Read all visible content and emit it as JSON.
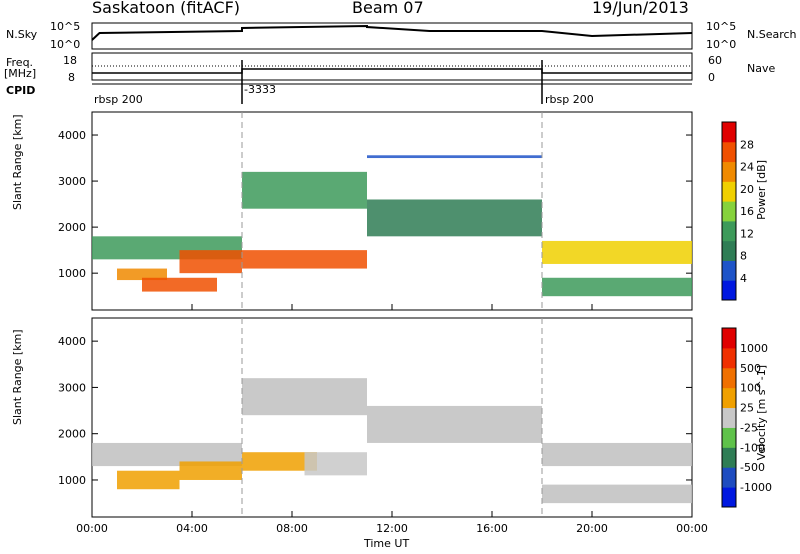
{
  "header": {
    "station": "Saskatoon (fitACF)",
    "beam": "Beam 07",
    "date": "19/Jun/2013"
  },
  "status_panel": {
    "nsky_label": "N.Sky",
    "nsky_ticks": [
      "10^5",
      "10^0"
    ],
    "nsearch_label": "N.Search",
    "nsearch_ticks": [
      "10^5",
      "10^0"
    ],
    "freq_label": "Freq.",
    "freq_unit": "[MHz]",
    "freq_ticks": [
      "18",
      "8"
    ],
    "nave_label": "Nave",
    "nave_ticks": [
      "60",
      "0"
    ],
    "cpid_label": "CPID",
    "cpid_segments": [
      {
        "start": 0,
        "end": 6,
        "label": "rbsp 200"
      },
      {
        "start": 6,
        "end": 18,
        "label": "-3333"
      },
      {
        "start": 18,
        "end": 24,
        "label": "rbsp 200"
      }
    ]
  },
  "colors": {
    "power_scale": [
      "#0018e0",
      "#1e54c8",
      "#2f7d55",
      "#3d9a5a",
      "#86d23c",
      "#f0d000",
      "#f08a00",
      "#f05000",
      "#e00000"
    ],
    "velocity_scale": [
      "#0018e0",
      "#1e4cc0",
      "#2f7d55",
      "#5fc24a",
      "#c8c8c8",
      "#f0a000",
      "#f07000",
      "#f03000",
      "#e00000"
    ],
    "ground_scatter": "#c0c0c0"
  },
  "chart_data": [
    {
      "type": "heatmap",
      "title": "Power",
      "ylabel": "Slant Range [km]",
      "xlabel": "Time UT",
      "xlim": [
        0,
        24
      ],
      "ylim": [
        200,
        4500
      ],
      "x_ticks": [
        "00:00",
        "04:00",
        "08:00",
        "12:00",
        "16:00",
        "20:00",
        "00:00"
      ],
      "y_ticks": [
        1000,
        2000,
        3000,
        4000
      ],
      "colorbar": {
        "label": "Power [dB]",
        "ticks": [
          "4",
          "8",
          "12",
          "16",
          "20",
          "24",
          "28"
        ],
        "range": [
          0,
          30
        ]
      },
      "regions": [
        {
          "t0": 0.0,
          "t1": 6.0,
          "r0": 1300,
          "r1": 1800,
          "value": 12
        },
        {
          "t0": 1.0,
          "t1": 3.0,
          "r0": 850,
          "r1": 1100,
          "value": 22
        },
        {
          "t0": 2.0,
          "t1": 5.0,
          "r0": 600,
          "r1": 900,
          "value": 26
        },
        {
          "t0": 3.5,
          "t1": 6.0,
          "r0": 1000,
          "r1": 1500,
          "value": 26
        },
        {
          "t0": 6.0,
          "t1": 11.0,
          "r0": 1100,
          "r1": 1500,
          "value": 26
        },
        {
          "t0": 6.0,
          "t1": 11.0,
          "r0": 2400,
          "r1": 3200,
          "value": 10
        },
        {
          "t0": 11.0,
          "t1": 18.0,
          "r0": 1800,
          "r1": 2600,
          "value": 8
        },
        {
          "t0": 11.0,
          "t1": 18.0,
          "r0": 3500,
          "r1": 3560,
          "value": 6
        },
        {
          "t0": 18.0,
          "t1": 24.0,
          "r0": 1200,
          "r1": 1700,
          "value": 18
        },
        {
          "t0": 18.0,
          "t1": 24.0,
          "r0": 500,
          "r1": 900,
          "value": 10
        }
      ]
    },
    {
      "type": "heatmap",
      "title": "Velocity",
      "ylabel": "Slant Range [km]",
      "xlabel": "Time UT",
      "xlim": [
        0,
        24
      ],
      "ylim": [
        200,
        4500
      ],
      "x_ticks": [
        "00:00",
        "04:00",
        "08:00",
        "12:00",
        "16:00",
        "20:00",
        "00:00"
      ],
      "y_ticks": [
        1000,
        2000,
        3000,
        4000
      ],
      "colorbar": {
        "label": "Velocity [m s^-1]",
        "ticks": [
          "1000",
          "500",
          "100",
          "25",
          "-25",
          "-100",
          "-500",
          "-1000"
        ],
        "range": [
          -1200,
          1200
        ]
      },
      "regions": [
        {
          "t0": 0.0,
          "t1": 6.0,
          "r0": 1300,
          "r1": 1800,
          "value": 0,
          "ground_scatter": true
        },
        {
          "t0": 1.0,
          "t1": 3.5,
          "r0": 800,
          "r1": 1200,
          "value": 150
        },
        {
          "t0": 3.5,
          "t1": 6.0,
          "r0": 1000,
          "r1": 1400,
          "value": 300
        },
        {
          "t0": 6.0,
          "t1": 9.0,
          "r0": 1200,
          "r1": 1600,
          "value": 250
        },
        {
          "t0": 8.5,
          "t1": 11.0,
          "r0": 1100,
          "r1": 1600,
          "value": -120
        },
        {
          "t0": 6.0,
          "t1": 11.0,
          "r0": 2400,
          "r1": 3200,
          "value": 0,
          "ground_scatter": true
        },
        {
          "t0": 11.0,
          "t1": 18.0,
          "r0": 1800,
          "r1": 2600,
          "value": 0,
          "ground_scatter": true
        },
        {
          "t0": 18.0,
          "t1": 24.0,
          "r0": 1300,
          "r1": 1800,
          "value": 0,
          "ground_scatter": true
        },
        {
          "t0": 18.0,
          "t1": 24.0,
          "r0": 500,
          "r1": 900,
          "value": 0,
          "ground_scatter": true
        }
      ]
    }
  ]
}
